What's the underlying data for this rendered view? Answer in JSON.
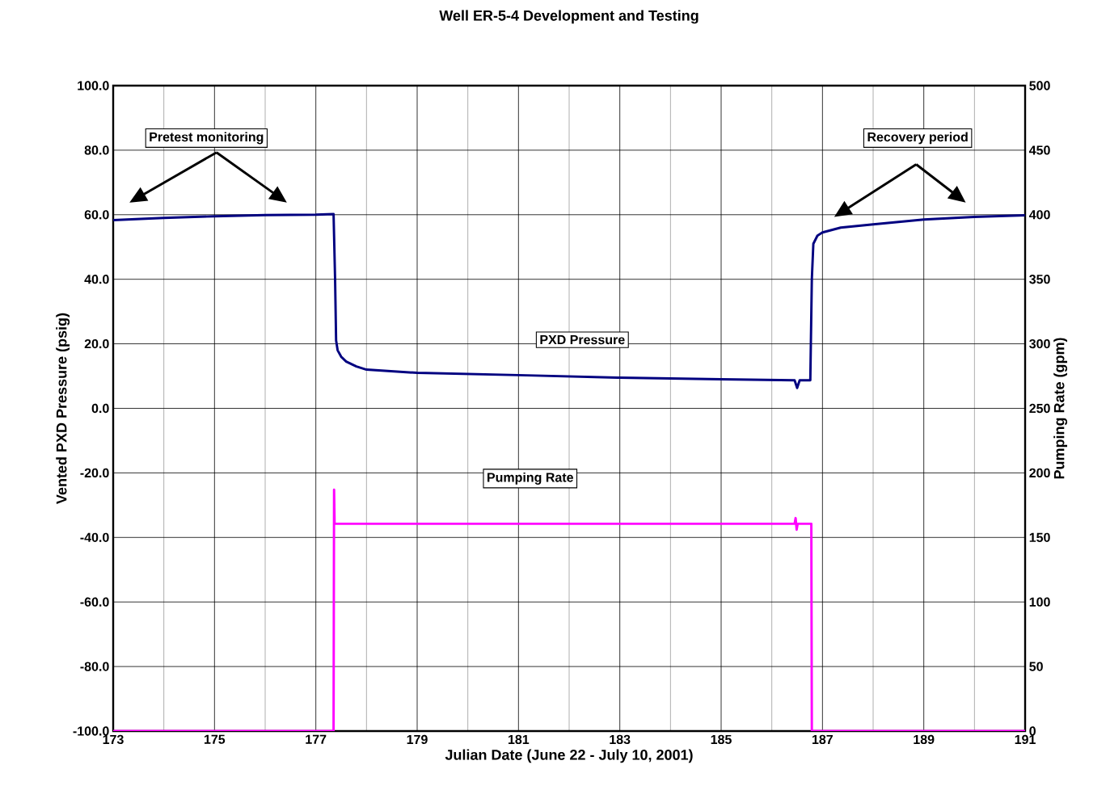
{
  "chart_data": {
    "type": "line",
    "title": "Well ER-5-4 Development and Testing",
    "xlabel": "Julian Date (June 22 - July 10, 2001)",
    "ylabel": "Vented PXD Pressure (psig)",
    "y2label": "Pumping Rate (gpm)",
    "xlim": [
      173,
      191
    ],
    "xticks": [
      173,
      175,
      177,
      179,
      181,
      183,
      185,
      187,
      189,
      191
    ],
    "ylim": [
      -100,
      100
    ],
    "yticks": [
      {
        "value": -100,
        "label": "-100.0"
      },
      {
        "value": -80,
        "label": "-80.0"
      },
      {
        "value": -60,
        "label": "-60.0"
      },
      {
        "value": -40,
        "label": "-40.0"
      },
      {
        "value": -20,
        "label": "-20.0"
      },
      {
        "value": 0,
        "label": "0.0"
      },
      {
        "value": 20,
        "label": "20.0"
      },
      {
        "value": 40,
        "label": "40.0"
      },
      {
        "value": 60,
        "label": "60.0"
      },
      {
        "value": 80,
        "label": "80.0"
      },
      {
        "value": 100,
        "label": "100.0"
      }
    ],
    "y2lim": [
      0,
      500
    ],
    "y2ticks": [
      0,
      50,
      100,
      150,
      200,
      250,
      300,
      350,
      400,
      450,
      500
    ],
    "grid": true,
    "marker": "none",
    "line_style": "solid",
    "annotations": [
      "Pretest monitoring",
      "Recovery period",
      "PXD Pressure",
      "Pumping Rate"
    ],
    "series": [
      {
        "color": "#000080",
        "x": [
          173,
          174,
          175,
          176,
          177,
          177.35,
          177.38,
          177.4,
          177.43,
          177.5,
          177.6,
          177.8,
          178,
          179,
          181,
          183,
          185,
          186.45,
          186.5,
          186.55,
          186.76,
          186.79,
          186.82,
          186.9,
          187,
          187.36,
          188,
          189,
          190,
          191
        ],
        "values": [
          58.3,
          59,
          59.5,
          59.9,
          60,
          60.2,
          40,
          21,
          18,
          16,
          14.5,
          13,
          12,
          11,
          10.3,
          9.5,
          9,
          8.7,
          6.3,
          8.7,
          8.7,
          40,
          51,
          53.5,
          54.5,
          56,
          57,
          58.5,
          59.3,
          59.8
        ]
      },
      {
        "color": "#ff00ff",
        "axis": "y2",
        "x": [
          173,
          177.35,
          177.36,
          177.37,
          177.38,
          177.5,
          181,
          186.45,
          186.47,
          186.49,
          186.51,
          186.53,
          186.78,
          186.79,
          191
        ],
        "values": [
          0,
          0,
          187,
          161,
          160.6,
          160.6,
          160.6,
          160.6,
          165,
          156,
          160.6,
          160.6,
          160.6,
          0,
          0
        ]
      }
    ]
  }
}
